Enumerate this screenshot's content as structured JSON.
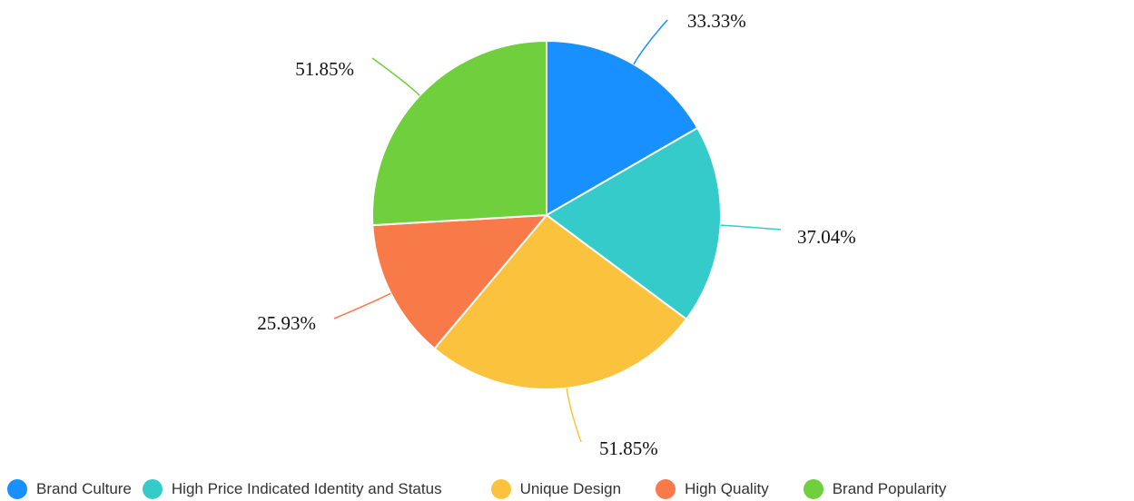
{
  "chart_data": {
    "type": "pie",
    "title": "",
    "categories": [
      "Brand Culture",
      "High Price Indicated Identity and Status",
      "Unique Design",
      "High Quality",
      "Brand Popularity"
    ],
    "values": [
      33.33,
      37.04,
      51.85,
      25.93,
      51.85
    ],
    "data_labels": [
      "33.33%",
      "37.04%",
      "51.85%",
      "25.93%",
      "51.85%"
    ],
    "colors": [
      "#1890ff",
      "#36cbcb",
      "#fbc33d",
      "#f97a49",
      "#6fcf3d"
    ],
    "legend_position": "bottom",
    "label_style": "outside-with-leader-lines"
  }
}
